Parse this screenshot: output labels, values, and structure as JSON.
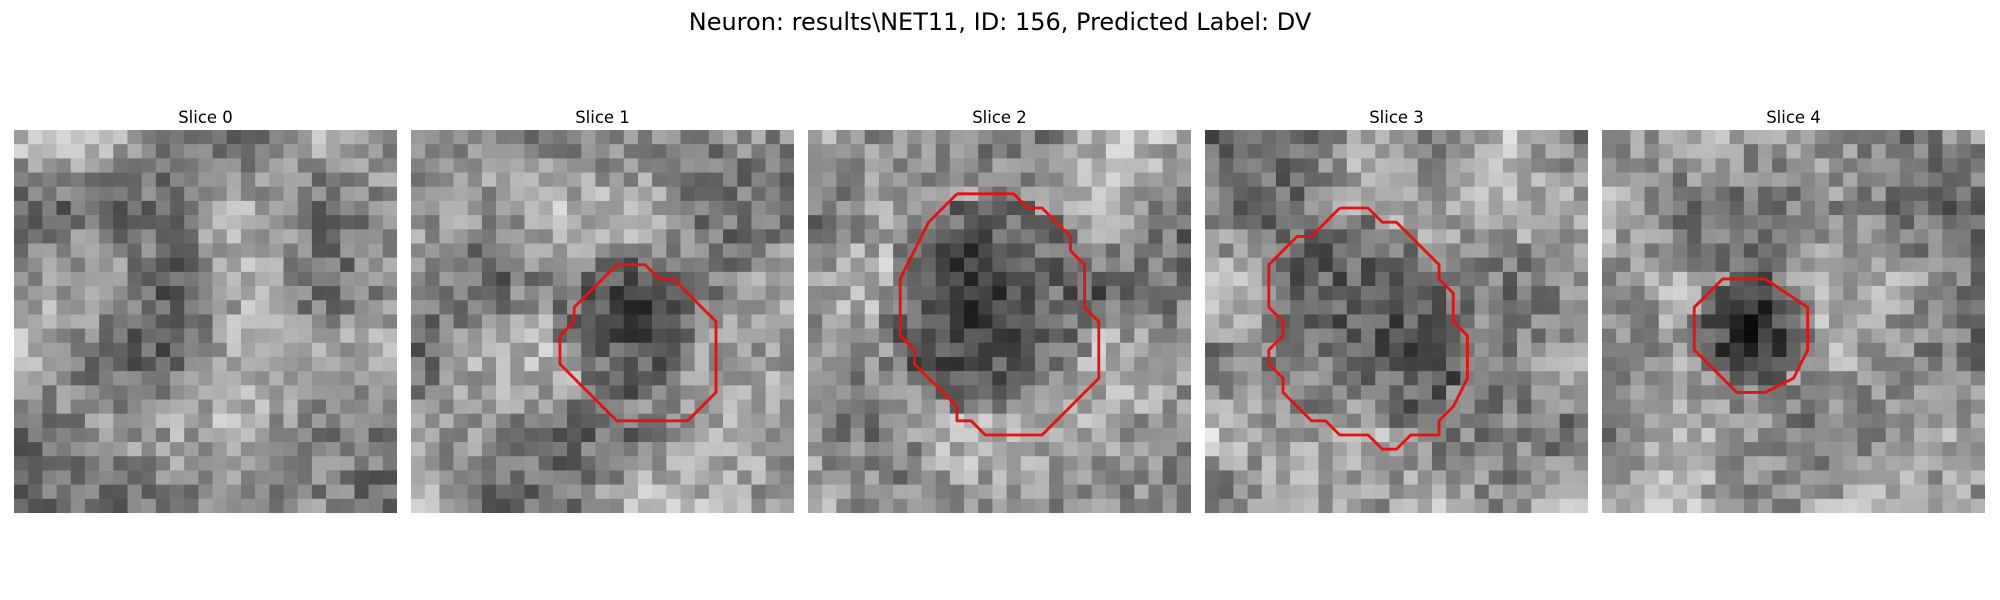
{
  "figure": {
    "title": "Neuron: results\\NET11, ID: 156, Predicted Label: DV"
  },
  "overlay_color": "#e81010",
  "slices": [
    {
      "title": "Slice 0",
      "has_contour": false,
      "dark_blob": 0.25,
      "seed": 11,
      "contour": []
    },
    {
      "title": "Slice 1",
      "has_contour": true,
      "dark_blob": 0.85,
      "seed": 23,
      "contour": [
        [
          14.5,
          9.5
        ],
        [
          16.5,
          9.5
        ],
        [
          17.5,
          10.5
        ],
        [
          18.5,
          10.5
        ],
        [
          21.5,
          13.5
        ],
        [
          21.5,
          18.5
        ],
        [
          19.5,
          20.5
        ],
        [
          14.5,
          20.5
        ],
        [
          11.5,
          17.5
        ],
        [
          10.5,
          16.5
        ],
        [
          10.5,
          14.5
        ],
        [
          11.5,
          13.5
        ],
        [
          11.5,
          12.5
        ],
        [
          12.5,
          11.5
        ],
        [
          13.5,
          10.5
        ],
        [
          14.5,
          9.5
        ]
      ]
    },
    {
      "title": "Slice 2",
      "has_contour": true,
      "dark_blob": 1.0,
      "seed": 37,
      "contour": [
        [
          10.5,
          4.5
        ],
        [
          14.5,
          4.5
        ],
        [
          15.5,
          5.5
        ],
        [
          16.5,
          5.5
        ],
        [
          18.5,
          7.5
        ],
        [
          18.5,
          8.5
        ],
        [
          19.5,
          9.5
        ],
        [
          19.5,
          12.5
        ],
        [
          20.5,
          13.5
        ],
        [
          20.5,
          17.5
        ],
        [
          16.5,
          21.5
        ],
        [
          12.5,
          21.5
        ],
        [
          11.5,
          20.5
        ],
        [
          10.5,
          20.5
        ],
        [
          10.5,
          19.5
        ],
        [
          8.5,
          17.5
        ],
        [
          7.5,
          16.5
        ],
        [
          7.5,
          15.5
        ],
        [
          6.5,
          14.5
        ],
        [
          6.5,
          10.5
        ],
        [
          7.5,
          8.5
        ],
        [
          8.5,
          6.5
        ],
        [
          10.5,
          4.5
        ]
      ]
    },
    {
      "title": "Slice 3",
      "has_contour": true,
      "dark_blob": 0.8,
      "seed": 51,
      "contour": [
        [
          9.5,
          5.5
        ],
        [
          11.5,
          5.5
        ],
        [
          12.5,
          6.5
        ],
        [
          13.5,
          6.5
        ],
        [
          14.5,
          7.5
        ],
        [
          15.5,
          8.5
        ],
        [
          16.5,
          9.5
        ],
        [
          16.5,
          10.5
        ],
        [
          17.5,
          11.5
        ],
        [
          17.5,
          13.5
        ],
        [
          18.5,
          14.5
        ],
        [
          18.5,
          17.5
        ],
        [
          17.5,
          19.5
        ],
        [
          16.5,
          20.5
        ],
        [
          16.5,
          21.5
        ],
        [
          14.5,
          21.5
        ],
        [
          13.5,
          22.5
        ],
        [
          12.5,
          22.5
        ],
        [
          11.5,
          21.5
        ],
        [
          9.5,
          21.5
        ],
        [
          8.5,
          20.5
        ],
        [
          7.5,
          20.5
        ],
        [
          5.5,
          18.5
        ],
        [
          5.5,
          17.5
        ],
        [
          4.5,
          16.5
        ],
        [
          4.5,
          15.5
        ],
        [
          5.5,
          14.5
        ],
        [
          5.5,
          13.5
        ],
        [
          4.5,
          12.5
        ],
        [
          4.5,
          9.5
        ],
        [
          6.5,
          7.5
        ],
        [
          7.5,
          7.5
        ],
        [
          8.5,
          6.5
        ],
        [
          9.5,
          5.5
        ]
      ]
    },
    {
      "title": "Slice 4",
      "has_contour": true,
      "dark_blob": 0.85,
      "seed": 67,
      "contour": [
        [
          9.5,
          10.5
        ],
        [
          11.5,
          10.5
        ],
        [
          14.5,
          12.5
        ],
        [
          14.5,
          14.5
        ],
        [
          14.5,
          15.5
        ],
        [
          13.5,
          17.5
        ],
        [
          11.5,
          18.5
        ],
        [
          9.5,
          18.5
        ],
        [
          8.5,
          17.5
        ],
        [
          7.5,
          16.5
        ],
        [
          6.5,
          15.5
        ],
        [
          6.5,
          12.5
        ],
        [
          8.5,
          10.5
        ],
        [
          9.5,
          10.5
        ]
      ]
    }
  ]
}
